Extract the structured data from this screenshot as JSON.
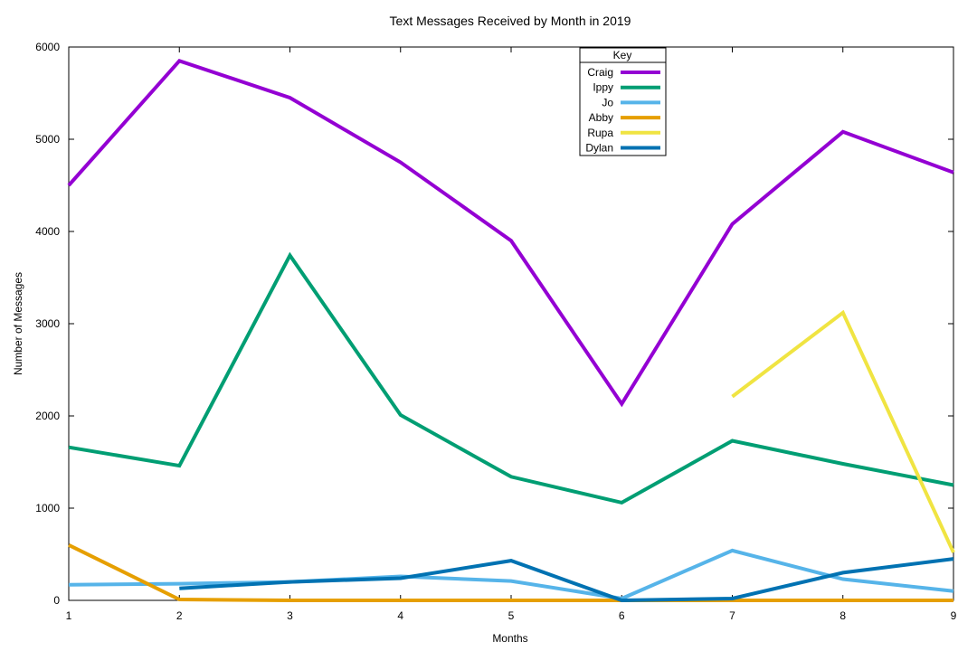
{
  "chart_data": {
    "type": "line",
    "title": "Text Messages Received by Month in 2019",
    "xlabel": "Months",
    "ylabel": "Number of Messages",
    "xlim": [
      1,
      9
    ],
    "ylim": [
      0,
      6000
    ],
    "xticks": [
      1,
      2,
      3,
      4,
      5,
      6,
      7,
      8,
      9
    ],
    "yticks": [
      0,
      1000,
      2000,
      3000,
      4000,
      5000,
      6000
    ],
    "grid": false,
    "legend": {
      "title": "Key",
      "placement": "top-center"
    },
    "series": [
      {
        "name": "Craig",
        "color": "#9400d3",
        "points": [
          [
            1,
            4500
          ],
          [
            2,
            5850
          ],
          [
            3,
            5450
          ],
          [
            4,
            4750
          ],
          [
            5,
            3900
          ],
          [
            6,
            2130
          ],
          [
            7,
            4080
          ],
          [
            8,
            5080
          ],
          [
            9,
            4640
          ]
        ]
      },
      {
        "name": "Ippy",
        "color": "#009e73",
        "points": [
          [
            1,
            1660
          ],
          [
            2,
            1460
          ],
          [
            3,
            3740
          ],
          [
            4,
            2010
          ],
          [
            5,
            1340
          ],
          [
            6,
            1060
          ],
          [
            7,
            1730
          ],
          [
            8,
            1480
          ],
          [
            9,
            1250
          ]
        ]
      },
      {
        "name": "Jo",
        "color": "#56b4e9",
        "points": [
          [
            1,
            170
          ],
          [
            2,
            180
          ],
          [
            3,
            200
          ],
          [
            4,
            260
          ],
          [
            5,
            210
          ],
          [
            6,
            20
          ],
          [
            7,
            540
          ],
          [
            8,
            230
          ],
          [
            9,
            100
          ]
        ]
      },
      {
        "name": "Abby",
        "color": "#e69f00",
        "points": [
          [
            1,
            600
          ],
          [
            2,
            10
          ],
          [
            3,
            0
          ],
          [
            4,
            0
          ],
          [
            5,
            0
          ],
          [
            6,
            0
          ],
          [
            7,
            0
          ],
          [
            8,
            0
          ],
          [
            9,
            0
          ]
        ]
      },
      {
        "name": "Rupa",
        "color": "#f0e442",
        "points": [
          [
            7,
            2210
          ],
          [
            8,
            3120
          ],
          [
            9,
            520
          ]
        ]
      },
      {
        "name": "Dylan",
        "color": "#0072b2",
        "points": [
          [
            2,
            130
          ],
          [
            3,
            200
          ],
          [
            4,
            240
          ],
          [
            5,
            430
          ],
          [
            6,
            0
          ],
          [
            7,
            20
          ],
          [
            8,
            300
          ],
          [
            9,
            450
          ]
        ]
      }
    ]
  }
}
